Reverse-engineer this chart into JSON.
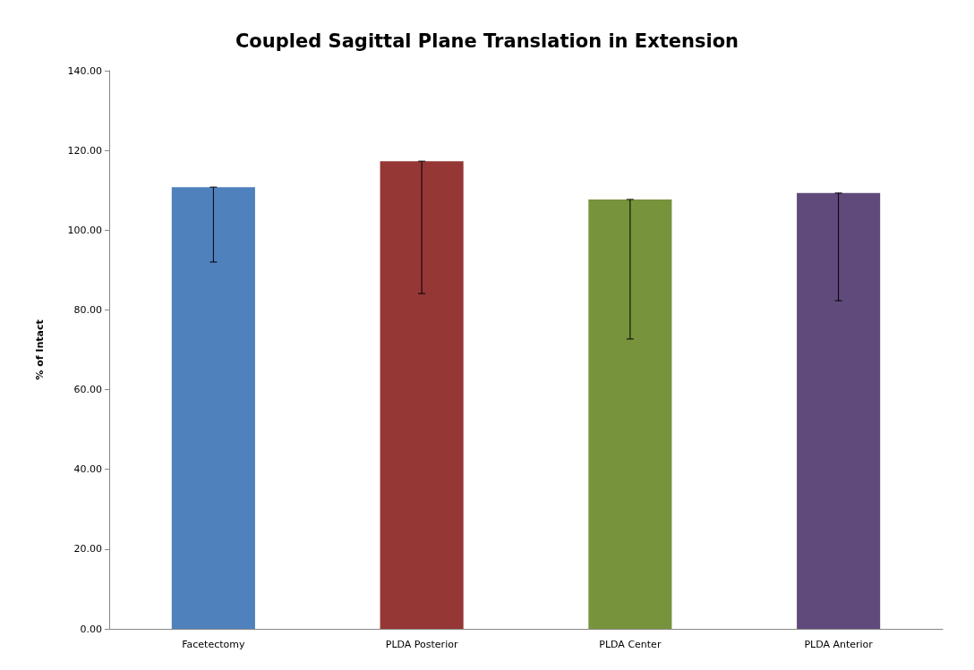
{
  "chart_data": {
    "type": "bar",
    "title": "Coupled Sagittal Plane Translation in Extension",
    "ylabel": "% of Intact",
    "categories": [
      "Facetectomy",
      "PLDA Posterior",
      "PLDA Center",
      "PLDA Anterior"
    ],
    "values": [
      110.8,
      117.3,
      107.7,
      109.3
    ],
    "colors": [
      "#4f81bd",
      "#953735",
      "#77933c",
      "#604a7b"
    ],
    "errors": [
      [
        92.0,
        110.8
      ],
      [
        84.1,
        117.3
      ],
      [
        72.7,
        107.7
      ],
      [
        82.3,
        109.3
      ]
    ],
    "ylim": [
      0,
      140
    ],
    "yticks": [
      {
        "value": 0,
        "label": "0.00"
      },
      {
        "value": 20,
        "label": "20.00"
      },
      {
        "value": 40,
        "label": "40.00"
      },
      {
        "value": 60,
        "label": "60.00"
      },
      {
        "value": 80,
        "label": "80.00"
      },
      {
        "value": 100,
        "label": "100.00"
      },
      {
        "value": 120,
        "label": "120.00"
      },
      {
        "value": 140,
        "label": "140.00"
      }
    ],
    "grid": false
  }
}
